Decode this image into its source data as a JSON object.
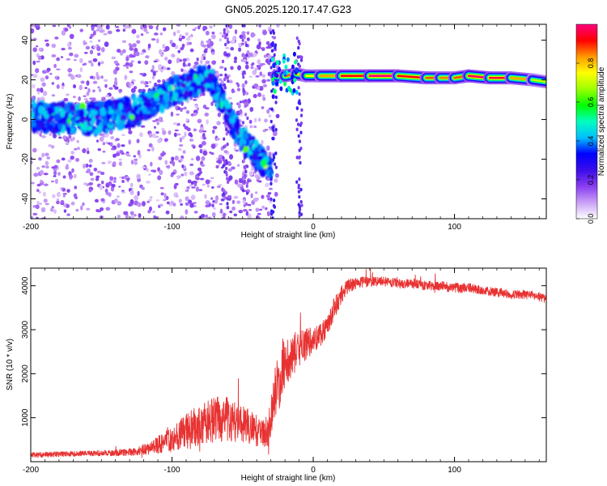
{
  "figure": {
    "title": "GN05.2025.120.17.47.G23"
  },
  "chart_data": [
    {
      "type": "heatmap",
      "xlabel": "Height of straight line (km)",
      "ylabel": "Frequency (Hz)",
      "xlim": [
        -200,
        165
      ],
      "ylim": [
        -50,
        48
      ],
      "xticks": [
        -200,
        -100,
        0,
        100
      ],
      "xtick_labels": [
        "-200",
        "-100",
        "0",
        "100"
      ],
      "yticks": [
        -40,
        -20,
        0,
        20,
        40
      ],
      "ytick_labels": [
        "-40",
        "-20",
        "0",
        "20",
        "40"
      ],
      "grid": false,
      "colorbar": {
        "label": "Normalized spectral amplitude",
        "range": [
          0.0,
          1.0
        ],
        "ticks": [
          0.0,
          0.2,
          0.4,
          0.6,
          0.8
        ],
        "tick_labels": [
          "0.0",
          "0.2",
          "0.4",
          "0.6",
          "0.8"
        ],
        "colors": [
          "#ffffff",
          "#c9a0f7",
          "#8a3cf0",
          "#3a0de8",
          "#0000ff",
          "#00bfff",
          "#00ffbf",
          "#00ff00",
          "#9cff00",
          "#ffff00",
          "#ff9900",
          "#ff0000",
          "#ff0080"
        ]
      },
      "ridge": [
        {
          "x": -200,
          "y": 2
        },
        {
          "x": -180,
          "y": 1
        },
        {
          "x": -160,
          "y": 0
        },
        {
          "x": -140,
          "y": 2
        },
        {
          "x": -120,
          "y": 6
        },
        {
          "x": -105,
          "y": 12
        },
        {
          "x": -90,
          "y": 17
        },
        {
          "x": -75,
          "y": 22
        },
        {
          "x": -68,
          "y": 14
        },
        {
          "x": -60,
          "y": 2
        },
        {
          "x": -50,
          "y": -10
        },
        {
          "x": -40,
          "y": -18
        },
        {
          "x": -35,
          "y": -22
        }
      ],
      "tone": [
        {
          "x": -26,
          "y": 22,
          "a": 0.95
        },
        {
          "x": -20,
          "y": 22,
          "a": 0.9
        },
        {
          "x": -12,
          "y": 23,
          "a": 0.85
        },
        {
          "x": -5,
          "y": 22,
          "a": 0.7
        },
        {
          "x": 5,
          "y": 22,
          "a": 0.8
        },
        {
          "x": 20,
          "y": 22,
          "a": 0.85
        },
        {
          "x": 40,
          "y": 22,
          "a": 1.0
        },
        {
          "x": 60,
          "y": 22,
          "a": 1.0
        },
        {
          "x": 80,
          "y": 21,
          "a": 0.85
        },
        {
          "x": 90,
          "y": 21,
          "a": 0.9
        },
        {
          "x": 100,
          "y": 21,
          "a": 0.8
        },
        {
          "x": 110,
          "y": 22,
          "a": 0.95
        },
        {
          "x": 125,
          "y": 21,
          "a": 1.0
        },
        {
          "x": 140,
          "y": 21,
          "a": 0.9
        },
        {
          "x": 155,
          "y": 20,
          "a": 0.75
        },
        {
          "x": 165,
          "y": 19,
          "a": 0.65
        }
      ]
    },
    {
      "type": "line",
      "xlabel": "Height of straight line (km)",
      "ylabel": "SNR (10 * v/v)",
      "xlim": [
        -200,
        165
      ],
      "ylim": [
        0,
        4400
      ],
      "xticks": [
        -200,
        -100,
        0,
        100
      ],
      "xtick_labels": [
        "-200",
        "-100",
        "0",
        "100"
      ],
      "yticks": [
        1000,
        2000,
        3000,
        4000
      ],
      "ytick_labels": [
        "1000",
        "2000",
        "3000",
        "4000"
      ],
      "grid": false,
      "color": "#e83232",
      "series": [
        {
          "x": [
            -200,
            -180,
            -160,
            -140,
            -125,
            -115,
            -105,
            -95,
            -85,
            -75,
            -65,
            -55,
            -45,
            -38,
            -32,
            -28,
            -24,
            -20,
            -16,
            -12,
            -8,
            -4,
            0,
            5,
            10,
            15,
            20,
            25,
            30,
            40,
            50,
            60,
            70,
            80,
            90,
            100,
            110,
            120,
            130,
            140,
            150,
            160,
            165
          ],
          "y": [
            150,
            170,
            190,
            200,
            230,
            320,
            450,
            600,
            750,
            900,
            1000,
            900,
            800,
            650,
            700,
            1400,
            1900,
            2300,
            2400,
            2500,
            2600,
            2700,
            2750,
            2900,
            3100,
            3500,
            3800,
            4000,
            4050,
            4100,
            4100,
            4050,
            4050,
            4000,
            4000,
            3950,
            3950,
            3900,
            3850,
            3800,
            3800,
            3750,
            3700
          ],
          "noise": [
            60,
            60,
            60,
            70,
            90,
            150,
            250,
            350,
            450,
            500,
            550,
            450,
            400,
            350,
            350,
            600,
            700,
            600,
            500,
            450,
            400,
            350,
            300,
            280,
            250,
            250,
            200,
            150,
            130,
            120,
            110,
            110,
            110,
            110,
            110,
            110,
            110,
            100,
            100,
            100,
            100,
            100,
            100
          ]
        }
      ]
    }
  ]
}
